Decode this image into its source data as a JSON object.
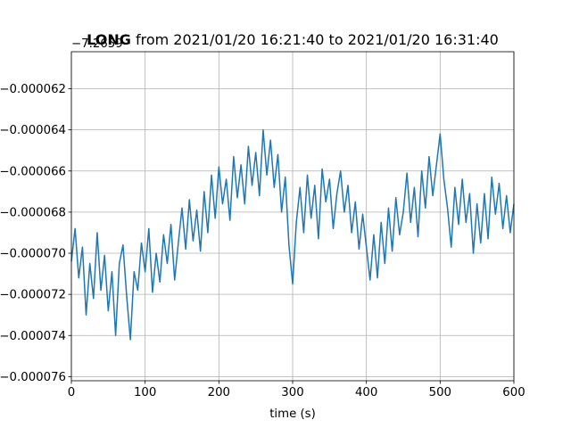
{
  "chart_data": {
    "type": "line",
    "title_bold": "LONG",
    "title_rest": " from 2021/01/20 16:21:40 to 2021/01/20 16:31:40",
    "offset_text": "−7.2659",
    "xlabel": "time (s)",
    "ylabel": "",
    "xlim": [
      0,
      600
    ],
    "ylim": [
      -7.62e-05,
      -6.02e-05
    ],
    "x_ticks": [
      0,
      100,
      200,
      300,
      400,
      500,
      600
    ],
    "x_tick_labels": [
      "0",
      "100",
      "200",
      "300",
      "400",
      "500",
      "600"
    ],
    "y_ticks": [
      -7.6e-05,
      -7.4e-05,
      -7.2e-05,
      -7e-05,
      -6.8e-05,
      -6.6e-05,
      -6.4e-05,
      -6.2e-05
    ],
    "y_tick_labels": [
      "−0.000076",
      "−0.000074",
      "−0.000072",
      "−0.000070",
      "−0.000068",
      "−0.000066",
      "−0.000064",
      "−0.000062"
    ],
    "grid": true,
    "line_color": "#1f77b4",
    "series": [
      {
        "x": [
          0,
          5,
          10,
          15,
          20,
          25,
          30,
          35,
          40,
          45,
          50,
          55,
          60,
          65,
          70,
          75,
          80,
          85,
          90,
          95,
          100,
          105,
          110,
          115,
          120,
          125,
          130,
          135,
          140,
          145,
          150,
          155,
          160,
          165,
          170,
          175,
          180,
          185,
          190,
          195,
          200,
          205,
          210,
          215,
          220,
          225,
          230,
          235,
          240,
          245,
          250,
          255,
          260,
          265,
          270,
          275,
          280,
          285,
          290,
          295,
          300,
          305,
          310,
          315,
          320,
          325,
          330,
          335,
          340,
          345,
          350,
          355,
          360,
          365,
          370,
          375,
          380,
          385,
          390,
          395,
          400,
          405,
          410,
          415,
          420,
          425,
          430,
          435,
          440,
          445,
          450,
          455,
          460,
          465,
          470,
          475,
          480,
          485,
          490,
          495,
          500,
          505,
          510,
          515,
          520,
          525,
          530,
          535,
          540,
          545,
          550,
          555,
          560,
          565,
          570,
          575,
          580,
          585,
          590,
          595,
          600
        ],
        "y": [
          -7.04e-05,
          -6.88e-05,
          -7.12e-05,
          -6.97e-05,
          -7.3e-05,
          -7.05e-05,
          -7.22e-05,
          -6.9e-05,
          -7.18e-05,
          -7.01e-05,
          -7.28e-05,
          -7.09e-05,
          -7.4e-05,
          -7.05e-05,
          -6.96e-05,
          -7.21e-05,
          -7.42e-05,
          -7.09e-05,
          -7.18e-05,
          -6.95e-05,
          -7.09e-05,
          -6.88e-05,
          -7.19e-05,
          -7e-05,
          -7.14e-05,
          -6.91e-05,
          -7.05e-05,
          -6.86e-05,
          -7.13e-05,
          -6.95e-05,
          -6.78e-05,
          -6.98e-05,
          -6.74e-05,
          -6.94e-05,
          -6.79e-05,
          -6.99e-05,
          -6.7e-05,
          -6.9e-05,
          -6.62e-05,
          -6.83e-05,
          -6.58e-05,
          -6.76e-05,
          -6.64e-05,
          -6.84e-05,
          -6.53e-05,
          -6.73e-05,
          -6.57e-05,
          -6.76e-05,
          -6.48e-05,
          -6.67e-05,
          -6.51e-05,
          -6.72e-05,
          -6.4e-05,
          -6.62e-05,
          -6.45e-05,
          -6.68e-05,
          -6.52e-05,
          -6.8e-05,
          -6.63e-05,
          -6.96e-05,
          -7.15e-05,
          -6.85e-05,
          -6.68e-05,
          -6.9e-05,
          -6.62e-05,
          -6.83e-05,
          -6.67e-05,
          -6.93e-05,
          -6.59e-05,
          -6.75e-05,
          -6.64e-05,
          -6.88e-05,
          -6.71e-05,
          -6.6e-05,
          -6.8e-05,
          -6.67e-05,
          -6.9e-05,
          -6.75e-05,
          -6.98e-05,
          -6.81e-05,
          -6.97e-05,
          -7.13e-05,
          -6.91e-05,
          -7.12e-05,
          -6.85e-05,
          -7.05e-05,
          -6.78e-05,
          -6.99e-05,
          -6.73e-05,
          -6.91e-05,
          -6.8e-05,
          -6.61e-05,
          -6.85e-05,
          -6.68e-05,
          -6.92e-05,
          -6.6e-05,
          -6.78e-05,
          -6.53e-05,
          -6.72e-05,
          -6.57e-05,
          -6.42e-05,
          -6.64e-05,
          -6.78e-05,
          -6.97e-05,
          -6.68e-05,
          -6.86e-05,
          -6.64e-05,
          -6.85e-05,
          -6.71e-05,
          -7e-05,
          -6.76e-05,
          -6.95e-05,
          -6.71e-05,
          -6.93e-05,
          -6.63e-05,
          -6.81e-05,
          -6.66e-05,
          -6.88e-05,
          -6.72e-05,
          -6.9e-05,
          -6.76e-05
        ]
      }
    ]
  }
}
